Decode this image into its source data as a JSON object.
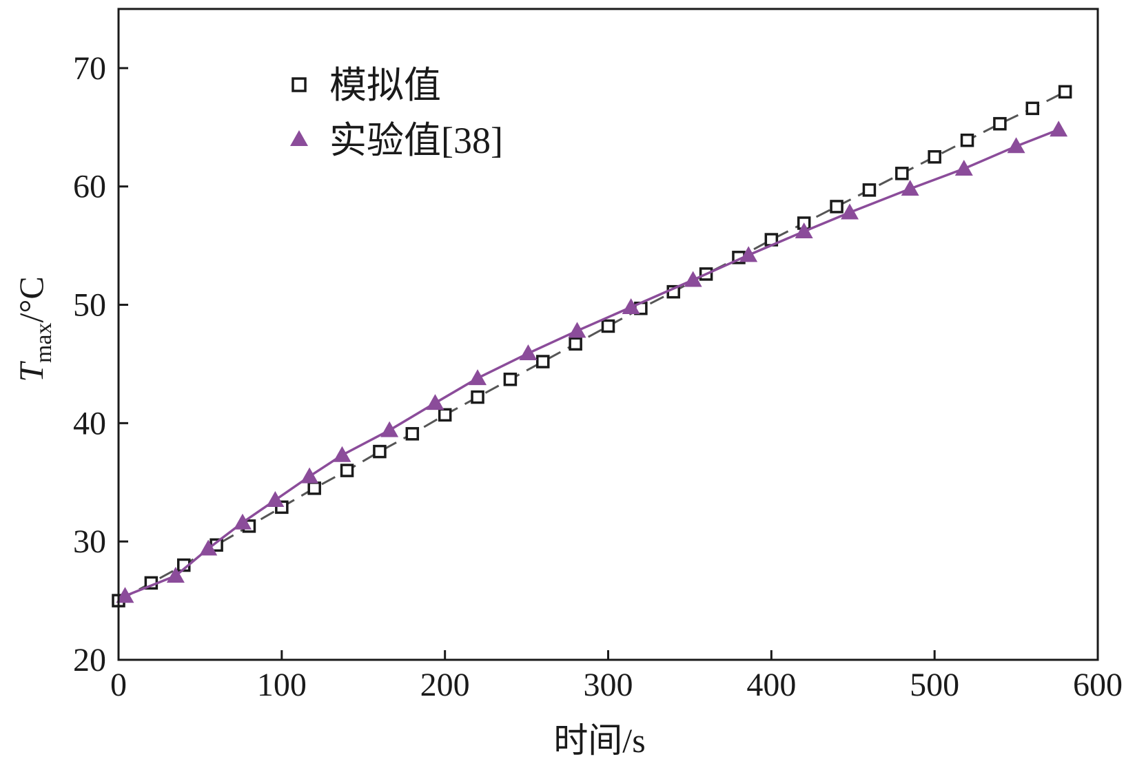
{
  "chart_data": {
    "type": "scatter",
    "xlabel": "时间/s",
    "ylabel": {
      "symbol": "T",
      "subscript": "max",
      "unit": "/°C"
    },
    "xlim": [
      0,
      600
    ],
    "ylim": [
      20,
      75
    ],
    "xticks": [
      0,
      100,
      200,
      300,
      400,
      500,
      600
    ],
    "yticks": [
      20,
      30,
      40,
      50,
      60,
      70
    ],
    "grid": false,
    "legend_position": "top-left",
    "series": [
      {
        "name": "模拟值",
        "marker": "open-square",
        "line": "dashed",
        "color": "#1a1a1a",
        "line_color": "#555555",
        "points": [
          [
            0,
            25.0
          ],
          [
            20,
            26.5
          ],
          [
            40,
            28.0
          ],
          [
            60,
            29.7
          ],
          [
            80,
            31.3
          ],
          [
            100,
            32.9
          ],
          [
            120,
            34.5
          ],
          [
            140,
            36.0
          ],
          [
            160,
            37.6
          ],
          [
            180,
            39.1
          ],
          [
            200,
            40.7
          ],
          [
            220,
            42.2
          ],
          [
            240,
            43.7
          ],
          [
            260,
            45.2
          ],
          [
            280,
            46.7
          ],
          [
            300,
            48.2
          ],
          [
            320,
            49.7
          ],
          [
            340,
            51.1
          ],
          [
            360,
            52.6
          ],
          [
            380,
            54.0
          ],
          [
            400,
            55.5
          ],
          [
            420,
            56.9
          ],
          [
            440,
            58.3
          ],
          [
            460,
            59.7
          ],
          [
            480,
            61.1
          ],
          [
            500,
            62.5
          ],
          [
            520,
            63.9
          ],
          [
            540,
            65.3
          ],
          [
            560,
            66.6
          ],
          [
            580,
            68.0
          ]
        ]
      },
      {
        "name": "实验值[38]",
        "marker": "filled-triangle",
        "line": "solid",
        "color": "#8B4C9A",
        "points": [
          [
            4,
            25.4
          ],
          [
            35,
            27.1
          ],
          [
            55,
            29.4
          ],
          [
            76,
            31.6
          ],
          [
            96,
            33.5
          ],
          [
            117,
            35.5
          ],
          [
            137,
            37.3
          ],
          [
            166,
            39.4
          ],
          [
            194,
            41.7
          ],
          [
            220,
            43.8
          ],
          [
            251,
            45.9
          ],
          [
            281,
            47.8
          ],
          [
            314,
            49.8
          ],
          [
            352,
            52.1
          ],
          [
            386,
            54.2
          ],
          [
            420,
            56.2
          ],
          [
            448,
            57.8
          ],
          [
            485,
            59.8
          ],
          [
            518,
            61.5
          ],
          [
            550,
            63.4
          ],
          [
            576,
            64.8
          ]
        ]
      }
    ]
  }
}
